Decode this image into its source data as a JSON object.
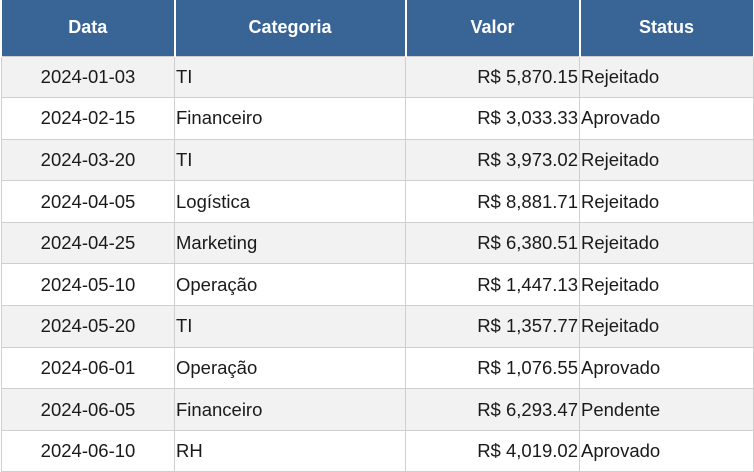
{
  "table": {
    "headers": {
      "date": "Data",
      "category": "Categoria",
      "value": "Valor",
      "status": "Status"
    },
    "rows": [
      {
        "date": "2024-01-03",
        "category": "TI",
        "value": "R$ 5,870.15",
        "status": "Rejeitado"
      },
      {
        "date": "2024-02-15",
        "category": "Financeiro",
        "value": "R$ 3,033.33",
        "status": "Aprovado"
      },
      {
        "date": "2024-03-20",
        "category": "TI",
        "value": "R$ 3,973.02",
        "status": "Rejeitado"
      },
      {
        "date": "2024-04-05",
        "category": "Logística",
        "value": "R$ 8,881.71",
        "status": "Rejeitado"
      },
      {
        "date": "2024-04-25",
        "category": "Marketing",
        "value": "R$ 6,380.51",
        "status": "Rejeitado"
      },
      {
        "date": "2024-05-10",
        "category": "Operação",
        "value": "R$ 1,447.13",
        "status": "Rejeitado"
      },
      {
        "date": "2024-05-20",
        "category": "TI",
        "value": "R$ 1,357.77",
        "status": "Rejeitado"
      },
      {
        "date": "2024-06-01",
        "category": "Operação",
        "value": "R$ 1,076.55",
        "status": "Aprovado"
      },
      {
        "date": "2024-06-05",
        "category": "Financeiro",
        "value": "R$ 6,293.47",
        "status": "Pendente"
      },
      {
        "date": "2024-06-10",
        "category": "RH",
        "value": "R$ 4,019.02",
        "status": "Aprovado"
      }
    ]
  },
  "colors": {
    "header_bg": "#386596",
    "header_text": "#ffffff",
    "row_alt_bg": "#f2f2f2",
    "row_bg": "#ffffff",
    "grid_line": "#cfcfcf"
  }
}
